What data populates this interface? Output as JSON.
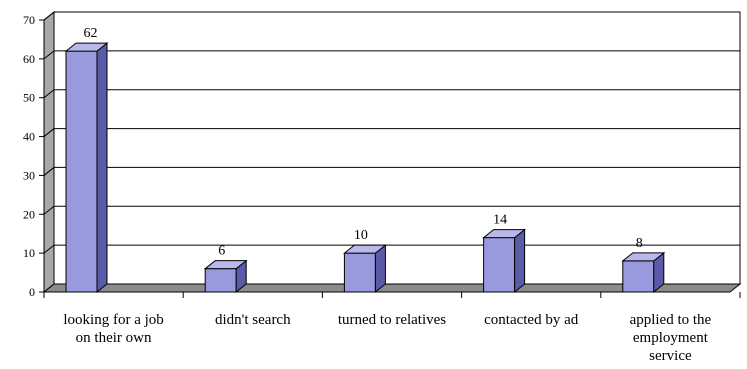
{
  "chart_data": {
    "type": "bar",
    "style": "3d-column",
    "title": "",
    "xlabel": "",
    "ylabel": "",
    "ylim": [
      0,
      70
    ],
    "yticks": [
      0,
      10,
      20,
      30,
      40,
      50,
      60,
      70
    ],
    "grid": true,
    "legend": "none",
    "categories": [
      [
        "looking for a job",
        "on their own"
      ],
      [
        "didn't search"
      ],
      [
        "turned to relatives"
      ],
      [
        "contacted by ad"
      ],
      [
        "applied to the",
        "employment",
        "service"
      ]
    ],
    "values": [
      62,
      6,
      10,
      14,
      8
    ],
    "data_labels": [
      "62",
      "6",
      "10",
      "14",
      "8"
    ],
    "colors": {
      "bar_front": "#9999dd",
      "bar_side": "#5a5aa8",
      "bar_top": "#b8b8ec",
      "wall": "#ffffff",
      "side_wall": "#a8a8a8",
      "floor": "#8c8c8c",
      "gridline": "#000000"
    }
  }
}
